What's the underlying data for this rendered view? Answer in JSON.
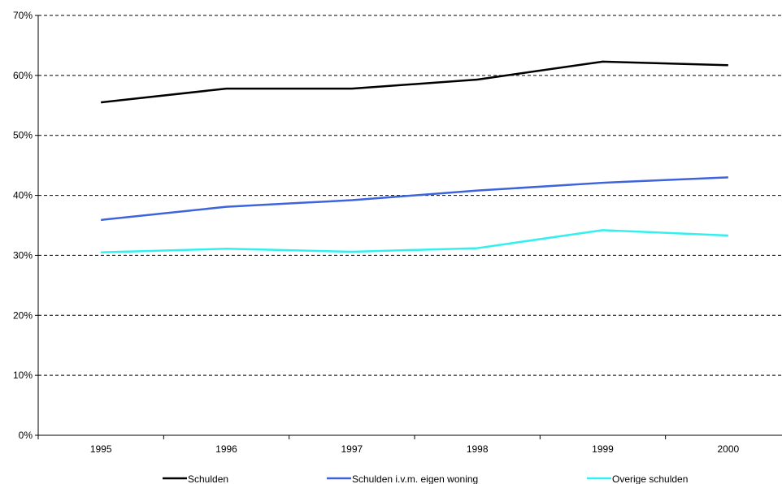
{
  "chart_data": {
    "type": "line",
    "title": "",
    "xlabel": "",
    "ylabel": "",
    "categories": [
      "1995",
      "1996",
      "1997",
      "1998",
      "1999",
      "2000"
    ],
    "ylim": [
      0,
      70
    ],
    "yticks": [
      "0%",
      "10%",
      "20%",
      "30%",
      "40%",
      "50%",
      "60%",
      "70%"
    ],
    "grid": true,
    "legend_position": "bottom",
    "series": [
      {
        "name": "Schulden",
        "color": "#000000",
        "values": [
          55.5,
          57.8,
          57.8,
          59.3,
          62.3,
          61.7
        ]
      },
      {
        "name": "Schulden i.v.m. eigen woning",
        "color": "#3d63dd",
        "values": [
          35.9,
          38.1,
          39.2,
          40.8,
          42.1,
          43.0
        ]
      },
      {
        "name": "Overige schulden",
        "color": "#33f0f0",
        "values": [
          30.5,
          31.1,
          30.6,
          31.2,
          34.2,
          33.3
        ]
      }
    ]
  }
}
